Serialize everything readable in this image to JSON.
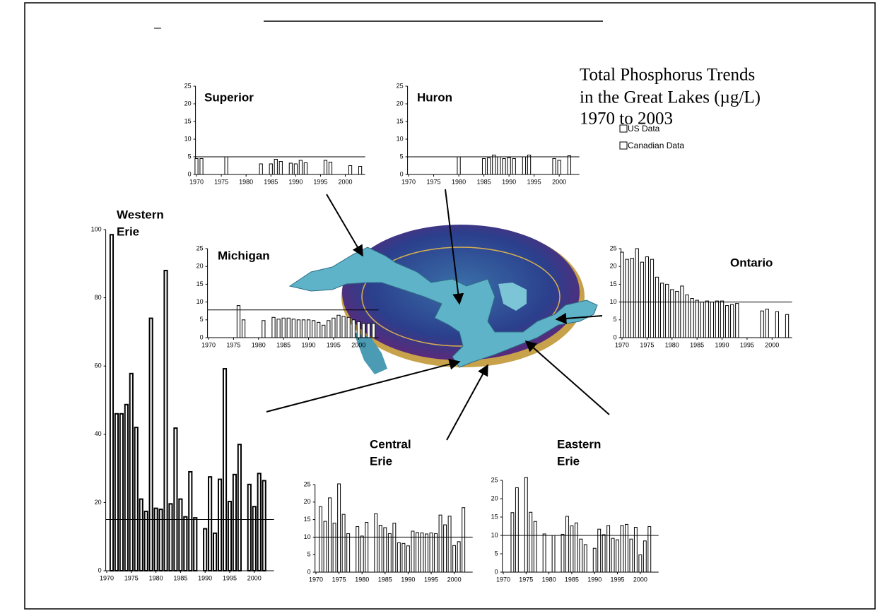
{
  "title": [
    "Total Phosphorus Trends",
    "in the Great Lakes (µg/L)",
    "1970 to 2003"
  ],
  "legend": [
    "US Data",
    "Canadian Data"
  ],
  "chart_data": [
    {
      "type": "bar",
      "title": [
        "Superior"
      ],
      "color": "#ffffff",
      "target": 5,
      "x": [
        1970,
        1971,
        1976,
        1983,
        1985,
        1986,
        1987,
        1989,
        1990,
        1991,
        1992,
        1996,
        1997,
        2001,
        2003
      ],
      "values": [
        4.5,
        4.5,
        5,
        3,
        3,
        4.3,
        3.7,
        3.2,
        3,
        4,
        3.3,
        4,
        3.5,
        2.5,
        2.3
      ],
      "xlim": [
        1969.8,
        2004
      ],
      "xticks": [
        1970,
        1975,
        1980,
        1985,
        1990,
        1995,
        2000
      ],
      "ylim": [
        0,
        25
      ],
      "yticks": [
        0,
        5,
        10,
        15,
        20,
        25
      ]
    },
    {
      "type": "bar",
      "title": [
        "Huron"
      ],
      "color": "#ffffff",
      "target": 5,
      "x": [
        1980,
        1985,
        1986,
        1987,
        1988,
        1989,
        1990,
        1991,
        1993,
        1994,
        1999,
        2000,
        2002
      ],
      "values": [
        5,
        4.5,
        4.7,
        5.5,
        5,
        4.5,
        4.8,
        4.5,
        5,
        5.5,
        4.5,
        4,
        5.3
      ],
      "xlim": [
        1969.8,
        2004
      ],
      "xticks": [
        1970,
        1975,
        1980,
        1985,
        1990,
        1995,
        2000
      ],
      "ylim": [
        0,
        25
      ],
      "yticks": [
        0,
        5,
        10,
        15,
        20,
        25
      ]
    },
    {
      "type": "bar",
      "title": [
        "Michigan"
      ],
      "color": "#ffffff",
      "target": 7.8,
      "x": [
        1976,
        1977,
        1981,
        1983,
        1984,
        1985,
        1986,
        1987,
        1988,
        1989,
        1990,
        1991,
        1992,
        1993,
        1994,
        1995,
        1996,
        1997,
        1998,
        1999,
        2000,
        2001,
        2002,
        2003
      ],
      "values": [
        9,
        5,
        4.8,
        5.7,
        5.2,
        5.5,
        5.5,
        5.2,
        5,
        5,
        5,
        4.8,
        4.3,
        3.5,
        4.8,
        5.5,
        6.3,
        6,
        5.7,
        5,
        4.5,
        4,
        4,
        4
      ],
      "xlim": [
        1969.8,
        2004
      ],
      "xticks": [
        1970,
        1975,
        1980,
        1985,
        1990,
        1995,
        2000
      ],
      "ylim": [
        0,
        25
      ],
      "yticks": [
        0,
        5,
        10,
        15,
        20,
        25
      ]
    },
    {
      "type": "bar",
      "title": [
        "Ontario"
      ],
      "color": "#ffffff",
      "target": 10,
      "x": [
        1970,
        1971,
        1972,
        1973,
        1974,
        1975,
        1976,
        1977,
        1978,
        1979,
        1980,
        1981,
        1982,
        1983,
        1984,
        1985,
        1986,
        1987,
        1988,
        1989,
        1990,
        1991,
        1992,
        1993,
        1998,
        1999,
        2001,
        2003
      ],
      "values": [
        24,
        22,
        22.3,
        25,
        21.2,
        22.7,
        22,
        17,
        15.3,
        15,
        13.5,
        13,
        14.5,
        12,
        11,
        10.5,
        10,
        10.3,
        10,
        10.3,
        10.3,
        9,
        9.3,
        9.6,
        7.5,
        8,
        7.3,
        6.5
      ],
      "xlim": [
        1969.8,
        2004
      ],
      "xticks": [
        1970,
        1975,
        1980,
        1985,
        1990,
        1995,
        2000
      ],
      "ylim": [
        0,
        25
      ],
      "yticks": [
        0,
        5,
        10,
        15,
        20,
        25
      ]
    },
    {
      "type": "bar",
      "title": [
        "Western",
        "Erie"
      ],
      "color": "#ffffff",
      "target": 15,
      "x": [
        1971,
        1972,
        1973,
        1974,
        1975,
        1976,
        1977,
        1978,
        1979,
        1980,
        1981,
        1982,
        1983,
        1984,
        1985,
        1986,
        1987,
        1988,
        1990,
        1991,
        1992,
        1993,
        1994,
        1995,
        1996,
        1997,
        1999,
        2000,
        2001,
        2002
      ],
      "values": [
        98.5,
        46,
        46,
        48.7,
        57.8,
        42,
        21,
        17.4,
        74,
        18.3,
        18,
        88,
        19.6,
        41.8,
        21,
        15.8,
        29,
        15.5,
        12.3,
        27.5,
        11,
        26.8,
        59.2,
        20.3,
        28.2,
        37,
        25.3,
        18.8,
        28.5,
        26.4
      ],
      "xlim": [
        1969.8,
        2004
      ],
      "xticks": [
        1970,
        1975,
        1980,
        1985,
        1990,
        1995,
        2000
      ],
      "ylim": [
        0,
        100
      ],
      "yticks": [
        0,
        20,
        40,
        60,
        80,
        100
      ]
    },
    {
      "type": "bar",
      "title": [
        "Central",
        "Erie"
      ],
      "color": "#ffffff",
      "target": 10,
      "x": [
        1971,
        1972,
        1973,
        1974,
        1975,
        1976,
        1977,
        1979,
        1980,
        1981,
        1983,
        1984,
        1985,
        1986,
        1987,
        1988,
        1989,
        1990,
        1991,
        1992,
        1993,
        1994,
        1995,
        1996,
        1997,
        1998,
        1999,
        2000,
        2001,
        2002
      ],
      "values": [
        18.7,
        14.5,
        21.2,
        14,
        25.2,
        16.5,
        11,
        13,
        10.3,
        14.2,
        16.7,
        13.4,
        12.7,
        11,
        14,
        8.4,
        8.2,
        7.5,
        11.7,
        11.3,
        11.2,
        10.9,
        11.2,
        11,
        16.3,
        13.5,
        16,
        7.6,
        8.7,
        18.4
      ],
      "xlim": [
        1969.8,
        2004
      ],
      "xticks": [
        1970,
        1975,
        1980,
        1985,
        1990,
        1995,
        2000
      ],
      "ylim": [
        0,
        25
      ],
      "yticks": [
        0,
        5,
        10,
        15,
        20,
        25
      ]
    },
    {
      "type": "bar",
      "title": [
        "Eastern",
        "Erie"
      ],
      "color": "#ffffff",
      "target": 10,
      "x": [
        1972,
        1973,
        1975,
        1976,
        1977,
        1979,
        1981,
        1983,
        1984,
        1985,
        1986,
        1987,
        1988,
        1990,
        1991,
        1992,
        1993,
        1994,
        1995,
        1996,
        1997,
        1998,
        1999,
        2000,
        2001,
        2002
      ],
      "values": [
        16.2,
        23,
        25.8,
        16.3,
        13.8,
        10.4,
        10,
        10.3,
        15.2,
        12.6,
        13.4,
        9,
        7.5,
        6.5,
        11.7,
        10.2,
        12.7,
        9.2,
        8.8,
        12.7,
        13,
        9,
        12.2,
        4.7,
        8.5,
        12.4
      ],
      "xlim": [
        1969.8,
        2004
      ],
      "xticks": [
        1970,
        1975,
        1980,
        1985,
        1990,
        1995,
        2000
      ],
      "ylim": [
        0,
        25
      ],
      "yticks": [
        0,
        5,
        10,
        15,
        20,
        25
      ]
    }
  ]
}
